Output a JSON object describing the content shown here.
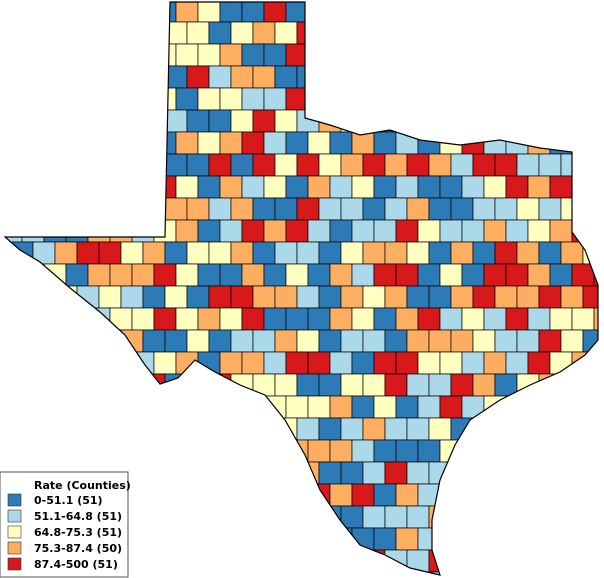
{
  "legend": {
    "title": "Rate (Counties)",
    "items": [
      {
        "label": "0-51.1 (51)",
        "color": "#2c7bb6"
      },
      {
        "label": "51.1-64.8 (51)",
        "color": "#abd9e9"
      },
      {
        "label": "64.8-75.3 (51)",
        "color": "#ffffbf"
      },
      {
        "label": "75.3-87.4 (50)",
        "color": "#fdae61"
      },
      {
        "label": "87.4-500 (51)",
        "color": "#d7191c"
      }
    ]
  }
}
